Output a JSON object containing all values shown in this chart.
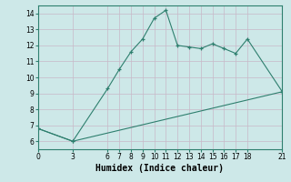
{
  "xlabel": "Humidex (Indice chaleur)",
  "line1_x": [
    0,
    3,
    6,
    7,
    8,
    9,
    10,
    11,
    12,
    13,
    14,
    15,
    16,
    17,
    18,
    21
  ],
  "line1_y": [
    6.8,
    6.0,
    9.3,
    10.5,
    11.6,
    12.4,
    13.7,
    14.2,
    12.0,
    11.9,
    11.8,
    12.1,
    11.8,
    11.5,
    12.4,
    9.1
  ],
  "line2_x": [
    0,
    3,
    21
  ],
  "line2_y": [
    6.8,
    6.0,
    9.1
  ],
  "line_color": "#2e7f6e",
  "bg_color": "#cde8e8",
  "grid_color": "#b8d8d8",
  "xlim": [
    0,
    21
  ],
  "ylim": [
    5.5,
    14.5
  ],
  "xticks": [
    0,
    3,
    6,
    7,
    8,
    9,
    10,
    11,
    12,
    13,
    14,
    15,
    16,
    17,
    18,
    21
  ],
  "yticks": [
    6,
    7,
    8,
    9,
    10,
    11,
    12,
    13,
    14
  ],
  "tick_fontsize": 5.5,
  "xlabel_fontsize": 7.0
}
